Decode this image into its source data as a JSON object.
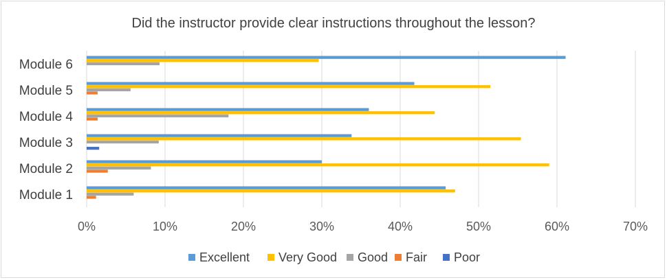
{
  "chart_data": {
    "type": "bar",
    "orientation": "horizontal",
    "title": "Did the instructor provide clear instructions throughout the lesson?",
    "categories": [
      "Module 1",
      "Module 2",
      "Module 3",
      "Module 4",
      "Module 5",
      "Module 6"
    ],
    "series": [
      {
        "name": "Excellent",
        "color": "#5b9bd5",
        "values": [
          45.8,
          30.0,
          33.8,
          36.0,
          41.8,
          61.1
        ]
      },
      {
        "name": "Very Good",
        "color": "#ffc000",
        "values": [
          47.0,
          59.0,
          55.4,
          44.4,
          51.5,
          29.6
        ]
      },
      {
        "name": "Good",
        "color": "#a5a5a5",
        "values": [
          6.0,
          8.2,
          9.2,
          18.1,
          5.6,
          9.3
        ]
      },
      {
        "name": "Fair",
        "color": "#ed7d31",
        "values": [
          1.2,
          2.7,
          0,
          1.4,
          1.4,
          0
        ]
      },
      {
        "name": "Poor",
        "color": "#4472c4",
        "values": [
          0,
          0,
          1.6,
          0,
          0,
          0
        ]
      }
    ],
    "xlim": [
      0,
      70
    ],
    "x_ticks": [
      "0%",
      "10%",
      "20%",
      "30%",
      "40%",
      "50%",
      "60%",
      "70%"
    ],
    "grid": true,
    "legend_position": "bottom"
  }
}
